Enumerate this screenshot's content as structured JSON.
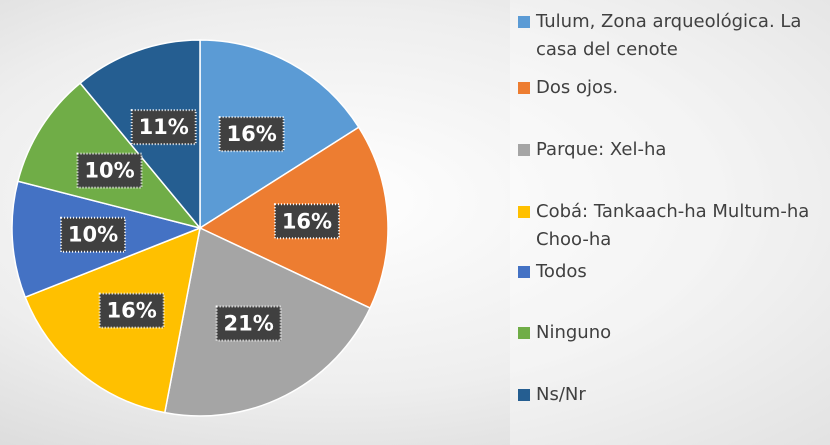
{
  "chart_data": {
    "type": "pie",
    "categories": [
      "Tulum, Zona arqueológica. La casa del cenote",
      "Dos ojos.",
      "Parque: Xel-ha",
      "Cobá: Tankaach-ha Multum-ha Choo-ha",
      "Todos",
      "Ninguno",
      "Ns/Nr"
    ],
    "values": [
      16,
      16,
      21,
      16,
      10,
      10,
      11
    ],
    "value_labels": [
      "16%",
      "16%",
      "21%",
      "16%",
      "10%",
      "10%",
      "11%"
    ],
    "colors": [
      "#5b9bd5",
      "#ed7d31",
      "#a5a5a5",
      "#ffc000",
      "#4472c4",
      "#70ad47",
      "#255e91"
    ],
    "legend": "right"
  }
}
